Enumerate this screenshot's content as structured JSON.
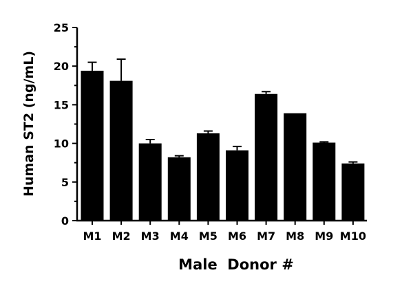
{
  "chart_data": {
    "type": "bar",
    "title": "",
    "xlabel": "Male  Donor #",
    "ylabel": "Human ST2 (ng/mL)",
    "ylim": [
      0,
      25
    ],
    "yticks": [
      0,
      5,
      10,
      15,
      20,
      25
    ],
    "categories": [
      "M1",
      "M2",
      "M3",
      "M4",
      "M5",
      "M6",
      "M7",
      "M8",
      "M9",
      "M10"
    ],
    "values": [
      19.4,
      18.1,
      10.0,
      8.2,
      11.3,
      9.1,
      16.4,
      13.9,
      10.1,
      7.4
    ],
    "errors": [
      1.1,
      2.8,
      0.5,
      0.2,
      0.3,
      0.5,
      0.3,
      0.0,
      0.1,
      0.2
    ],
    "grid": false,
    "legend": "none",
    "bar_color": "#000000"
  }
}
